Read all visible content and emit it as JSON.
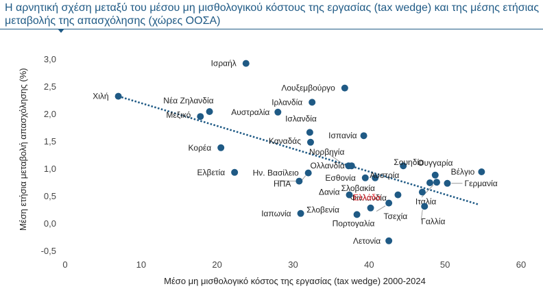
{
  "title": "Η αρνητική σχέση μεταξύ του μέσου μη μισθολογικού κόστους της εργασίας (tax wedge) και της μέσης ετήσιας μεταβολής της απασχόλησης (χώρες ΟΟΣΑ)",
  "chart_data": {
    "type": "scatter",
    "xlabel": "Μέσο μη μισθολογικό κόστος της εργασίας (tax wedge) 2000-2024",
    "ylabel": "Μέση ετήσια μεταβολή απασχόλησης (%)",
    "xlim": [
      0,
      60
    ],
    "ylim": [
      -0.5,
      3.0
    ],
    "xticks": [
      0,
      10,
      20,
      30,
      40,
      50,
      60
    ],
    "yticks": [
      "-0,5",
      "0,0",
      "0,5",
      "1,0",
      "1,5",
      "2,0",
      "2,5",
      "3,0"
    ],
    "grid": false,
    "marker_color": "#1f5a85",
    "highlight_color": "#e0222a",
    "trendline": {
      "type": "linear",
      "style": "dotted",
      "x_start": 7.0,
      "y_start": 2.33,
      "x_end": 54.5,
      "y_end": 0.35
    },
    "points": [
      {
        "label": "Ισραήλ",
        "x": 23.8,
        "y": 2.93
      },
      {
        "label": "Λουξεμβούργο",
        "x": 36.8,
        "y": 2.48
      },
      {
        "label": "Χιλή",
        "x": 7.0,
        "y": 2.33
      },
      {
        "label": "Ιρλανδία",
        "x": 32.5,
        "y": 2.22
      },
      {
        "label": "Νέα Ζηλανδία",
        "x": 19.0,
        "y": 2.05
      },
      {
        "label": "Αυστραλία",
        "x": 28.0,
        "y": 2.04
      },
      {
        "label": "Μεξικό",
        "x": 17.8,
        "y": 1.96
      },
      {
        "label": "Ισλανδία",
        "x": 32.2,
        "y": 1.67
      },
      {
        "label": "Καναδάς",
        "x": 32.3,
        "y": 1.49
      },
      {
        "label": "Ισπανία",
        "x": 39.3,
        "y": 1.61
      },
      {
        "label": "Κορέα",
        "x": 20.5,
        "y": 1.39
      },
      {
        "label": "Νορβηγία",
        "x": 37.3,
        "y": 1.06
      },
      {
        "label": "Ολλανδία",
        "x": 37.7,
        "y": 1.06
      },
      {
        "label": "Σουηδία",
        "x": 44.5,
        "y": 1.06
      },
      {
        "label": "Ουγγαρία",
        "x": 48.7,
        "y": 0.89
      },
      {
        "label": "Βέλγιο",
        "x": 54.8,
        "y": 0.95
      },
      {
        "label": "Ελβετία",
        "x": 22.3,
        "y": 0.94
      },
      {
        "label": "Ην. Βασίλειο",
        "x": 32.0,
        "y": 0.93
      },
      {
        "label": "Εσθονία",
        "x": 39.5,
        "y": 0.84
      },
      {
        "label": "Αυστρία",
        "x": 40.8,
        "y": 0.84
      },
      {
        "label": "ΗΠΑ",
        "x": 30.8,
        "y": 0.78
      },
      {
        "label": "Σλοβακία",
        "x": 48.0,
        "y": 0.75
      },
      {
        "label": "Γερμανία",
        "x": 50.3,
        "y": 0.74
      },
      {
        "label": "Φινλανδία",
        "x": 48.9,
        "y": 0.76
      },
      {
        "label": "Ιταλία",
        "x": 47.0,
        "y": 0.58
      },
      {
        "label": "Δανία",
        "x": 37.4,
        "y": 0.53
      },
      {
        "label": "Ελλάδα",
        "x": 43.8,
        "y": 0.53,
        "highlight": true
      },
      {
        "label": "Σλοβενία",
        "x": 42.6,
        "y": 0.38
      },
      {
        "label": "Γαλλία",
        "x": 47.3,
        "y": 0.32
      },
      {
        "label": "Τσεχία",
        "x": 40.2,
        "y": 0.29
      },
      {
        "label": "Ιαπωνία",
        "x": 31.0,
        "y": 0.19
      },
      {
        "label": "Πορτογαλία",
        "x": 38.4,
        "y": 0.17
      },
      {
        "label": "Λετονία",
        "x": 42.6,
        "y": -0.31
      }
    ]
  }
}
